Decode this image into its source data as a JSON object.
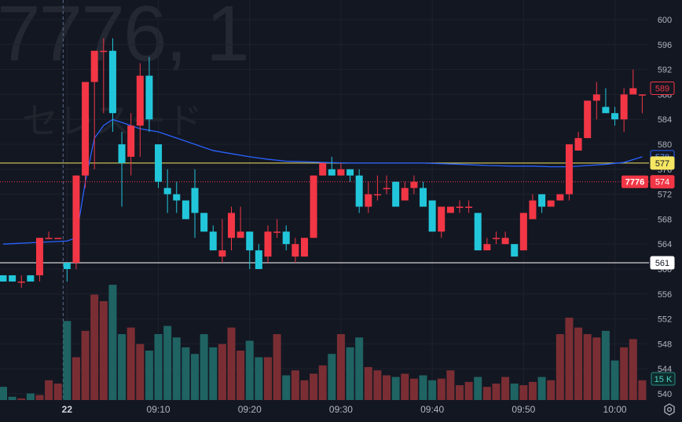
{
  "watermark": {
    "symbol": "7776, 1",
    "name": "セレスード"
  },
  "colors": {
    "up": "#f23645",
    "down": "#22c6da",
    "vol_up": "#7a2e33",
    "vol_down": "#1f6363",
    "ma": "#2962ff",
    "level_yellow": "#f5e663",
    "level_white": "#ffffff",
    "grid": "#1e222d",
    "text": "#b2b5be"
  },
  "chart_data": {
    "type": "candlestick",
    "price_axis": {
      "min": 540,
      "max": 600,
      "ticks": [
        540,
        544,
        548,
        552,
        556,
        560,
        564,
        568,
        572,
        576,
        580,
        584,
        588,
        592,
        596,
        600
      ]
    },
    "time_axis": {
      "ticks": [
        {
          "i": 7,
          "label": "22",
          "bold": true
        },
        {
          "i": 17,
          "label": "09:10"
        },
        {
          "i": 27,
          "label": "09:20"
        },
        {
          "i": 37,
          "label": "09:30"
        },
        {
          "i": 47,
          "label": "09:40"
        },
        {
          "i": 57,
          "label": "09:50"
        },
        {
          "i": 67,
          "label": "10:00"
        }
      ]
    },
    "candles": [
      [
        559,
        559,
        558,
        558
      ],
      [
        559,
        559,
        558,
        558
      ],
      [
        558,
        559,
        557,
        558
      ],
      [
        559,
        559,
        558,
        558
      ],
      [
        559,
        565,
        558,
        565
      ],
      [
        565,
        566,
        565,
        565
      ],
      [
        565,
        565,
        565,
        565
      ],
      [
        561,
        561,
        558,
        560
      ],
      [
        561,
        575,
        560,
        575
      ],
      [
        575,
        590,
        573,
        590
      ],
      [
        590,
        595,
        576,
        595
      ],
      [
        595,
        597,
        585,
        595
      ],
      [
        595,
        597,
        582,
        585
      ],
      [
        580,
        582,
        570,
        577
      ],
      [
        578,
        585,
        575,
        583
      ],
      [
        583,
        593,
        578,
        591
      ],
      [
        591,
        594,
        582,
        584
      ],
      [
        580,
        580,
        573,
        574
      ],
      [
        573,
        576,
        569,
        572
      ],
      [
        572,
        574,
        569,
        571
      ],
      [
        571,
        571,
        568,
        568
      ],
      [
        573,
        576,
        565,
        569
      ],
      [
        569,
        569,
        566,
        566
      ],
      [
        566,
        567,
        563,
        563
      ],
      [
        562,
        568,
        561,
        563
      ],
      [
        565,
        570,
        563,
        569
      ],
      [
        565,
        570,
        565,
        566
      ],
      [
        566,
        566,
        560,
        563
      ],
      [
        563,
        564,
        560,
        560
      ],
      [
        562,
        567,
        561,
        566
      ],
      [
        566,
        568,
        565,
        566
      ],
      [
        566,
        567,
        563,
        564
      ],
      [
        562,
        565,
        561,
        564
      ],
      [
        562,
        565,
        562,
        565
      ],
      [
        565,
        575,
        565,
        575
      ],
      [
        575,
        577,
        575,
        577
      ],
      [
        576,
        578,
        575,
        575
      ],
      [
        575,
        577,
        575,
        576
      ],
      [
        576,
        576,
        574,
        575
      ],
      [
        575,
        576,
        569,
        570
      ],
      [
        570,
        574,
        569,
        572
      ],
      [
        572,
        575,
        571,
        572
      ],
      [
        573,
        575,
        572,
        573
      ],
      [
        574,
        574,
        570,
        570
      ],
      [
        571,
        574,
        571,
        573
      ],
      [
        573,
        575,
        572,
        574
      ],
      [
        573,
        574,
        570,
        570
      ],
      [
        571,
        571,
        566,
        566
      ],
      [
        566,
        570,
        565,
        570
      ],
      [
        569,
        570,
        569,
        570
      ],
      [
        570,
        571,
        569,
        570
      ],
      [
        570,
        571,
        569,
        570
      ],
      [
        569,
        569,
        563,
        563
      ],
      [
        563,
        565,
        563,
        564
      ],
      [
        565,
        566,
        564,
        565
      ],
      [
        564,
        566,
        564,
        565
      ],
      [
        564,
        564,
        562,
        562
      ],
      [
        563,
        569,
        563,
        569
      ],
      [
        568,
        572,
        568,
        571
      ],
      [
        572,
        572,
        569,
        570
      ],
      [
        570,
        571,
        570,
        571
      ],
      [
        571,
        572,
        571,
        572
      ],
      [
        572,
        580,
        571,
        580
      ],
      [
        579,
        582,
        579,
        581
      ],
      [
        581,
        587,
        581,
        587
      ],
      [
        587,
        590,
        584,
        588
      ],
      [
        586,
        589,
        585,
        585
      ],
      [
        585,
        586,
        583,
        584
      ],
      [
        584,
        589,
        582,
        588
      ],
      [
        588,
        592,
        588,
        589
      ],
      [
        588,
        588,
        585,
        588
      ]
    ],
    "volume_max": 100,
    "volumes": [
      8,
      2,
      1,
      4,
      3,
      12,
      10,
      48,
      26,
      42,
      64,
      60,
      70,
      40,
      44,
      34,
      30,
      40,
      45,
      38,
      32,
      28,
      40,
      32,
      34,
      44,
      30,
      36,
      26,
      26,
      40,
      15,
      18,
      12,
      16,
      21,
      28,
      40,
      32,
      38,
      20,
      18,
      15,
      14,
      16,
      13,
      15,
      12,
      13,
      18,
      9,
      11,
      14,
      8,
      10,
      14,
      10,
      9,
      11,
      14,
      12,
      40,
      50,
      44,
      40,
      38,
      42,
      24,
      32,
      37,
      12
    ],
    "ma": [
      [
        0,
        564
      ],
      [
        7,
        564.5
      ],
      [
        8,
        565
      ],
      [
        9,
        574
      ],
      [
        10,
        581
      ],
      [
        11,
        583
      ],
      [
        12,
        584
      ],
      [
        13,
        583.5
      ],
      [
        14,
        583
      ],
      [
        15,
        582.5
      ],
      [
        17,
        582
      ],
      [
        19,
        581
      ],
      [
        21,
        580
      ],
      [
        23,
        579
      ],
      [
        25,
        578.5
      ],
      [
        27,
        578
      ],
      [
        29,
        577.6
      ],
      [
        31,
        577.3
      ],
      [
        33,
        577.2
      ],
      [
        35,
        577.1
      ],
      [
        38,
        577
      ],
      [
        42,
        577
      ],
      [
        46,
        577
      ],
      [
        50,
        576.8
      ],
      [
        53,
        576.6
      ],
      [
        56,
        576.5
      ],
      [
        58,
        576.5
      ],
      [
        60,
        576.4
      ],
      [
        62,
        576.4
      ],
      [
        64,
        576.6
      ],
      [
        66,
        576.8
      ],
      [
        68,
        577.1
      ],
      [
        70,
        578
      ]
    ],
    "levels": [
      {
        "price": 577,
        "label": "577",
        "color": "#f5e663",
        "style": "solid"
      },
      {
        "price": 561,
        "label": "561",
        "color": "#ffffff",
        "style": "solid"
      },
      {
        "price": 574,
        "label": "574",
        "color": "#f23645",
        "style": "dotted"
      }
    ],
    "price_tags": [
      {
        "price": 589,
        "label": "589",
        "style": "outline-red"
      },
      {
        "price": 578,
        "label": "578",
        "style": "outline-blue"
      },
      {
        "price": 574,
        "label": "574",
        "style": "fill-red"
      },
      {
        "price": 577,
        "label": "577",
        "style": "fill-yellow"
      },
      {
        "price": 561,
        "label": "561",
        "style": "fill-white"
      }
    ],
    "symbol_tag": {
      "label": "7776",
      "price": 574
    },
    "volume_tag": {
      "label": "15 K"
    },
    "session_break": 7
  }
}
